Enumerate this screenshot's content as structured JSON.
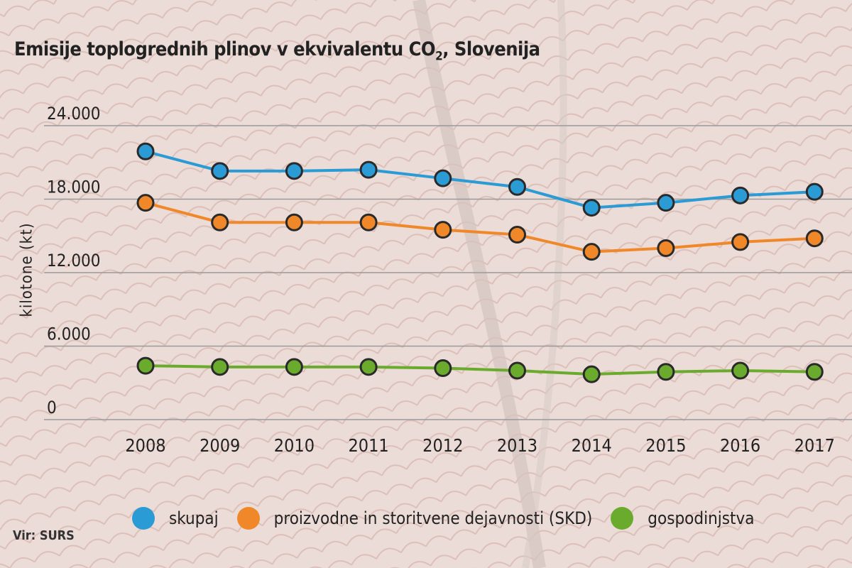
{
  "chart_data": {
    "type": "line",
    "title": "Emisije toplogrednih plinov v ekvivalentu CO",
    "title_subscript": "2",
    "title_suffix": ", Slovenija",
    "ylabel": "kilotone (kt)",
    "xlabel": "",
    "ylim": [
      0,
      24000
    ],
    "y_ticks": [
      0,
      6000,
      12000,
      18000,
      24000
    ],
    "y_tick_labels": [
      "0",
      "6.000",
      "12.000",
      "18.000",
      "24.000"
    ],
    "grid": true,
    "legend_position": "bottom",
    "categories": [
      "2008",
      "2009",
      "2010",
      "2011",
      "2012",
      "2013",
      "2014",
      "2015",
      "2016",
      "2017"
    ],
    "series": [
      {
        "name": "skupaj",
        "color": "#2b9bd6",
        "values": [
          21900,
          20300,
          20300,
          20400,
          19700,
          19000,
          17300,
          17700,
          18300,
          18600
        ]
      },
      {
        "name": "proizvodne in storitvene dejavnosti (SKD)",
        "color": "#f0882a",
        "values": [
          17700,
          16100,
          16100,
          16100,
          15500,
          15100,
          13700,
          14000,
          14500,
          14800
        ]
      },
      {
        "name": "gospodinjstva",
        "color": "#6aab2e",
        "values": [
          4400,
          4300,
          4300,
          4300,
          4200,
          4000,
          3700,
          3900,
          4000,
          3900
        ]
      }
    ]
  },
  "source": "Vir: SURS"
}
